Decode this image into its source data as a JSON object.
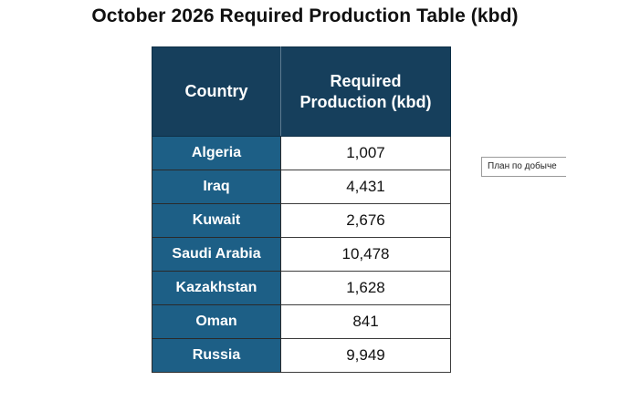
{
  "title": "October 2026 Required Production Table (kbd)",
  "chart_data": {
    "type": "table",
    "title": "October 2026 Required Production Table (kbd)",
    "columns": [
      "Country",
      "Required Production (kbd)"
    ],
    "rows": [
      {
        "country": "Algeria",
        "value": "1,007"
      },
      {
        "country": "Iraq",
        "value": "4,431"
      },
      {
        "country": "Kuwait",
        "value": "2,676"
      },
      {
        "country": "Saudi Arabia",
        "value": "10,478"
      },
      {
        "country": "Kazakhstan",
        "value": "1,628"
      },
      {
        "country": "Oman",
        "value": "841"
      },
      {
        "country": "Russia",
        "value": "9,949"
      }
    ]
  },
  "side_note": "План по добыче",
  "colors": {
    "header_bg": "#163f5c",
    "country_bg": "#1d5f86",
    "value_bg": "#ffffff"
  }
}
